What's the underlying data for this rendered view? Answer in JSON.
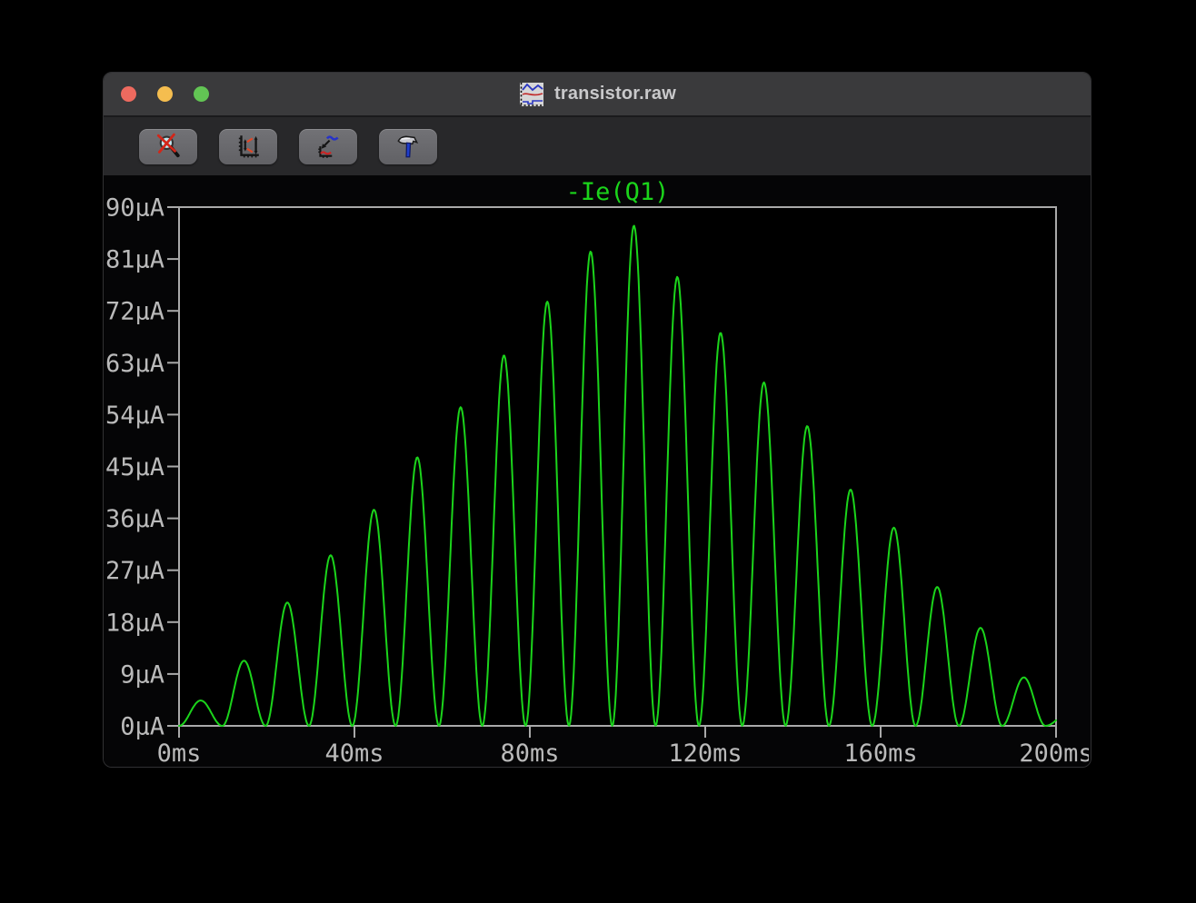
{
  "window": {
    "title": "transistor.raw",
    "traffic_lights": {
      "close": "#ee6a5f",
      "minimize": "#f5bd4f",
      "zoom": "#62c554"
    },
    "title_icon": "waveform-thumbnail-icon"
  },
  "toolbar": {
    "buttons": [
      {
        "icon": "zoom-cancel-icon"
      },
      {
        "icon": "autoscale-axes-icon"
      },
      {
        "icon": "add-plot-trace-icon"
      },
      {
        "icon": "hammer-tools-icon"
      }
    ]
  },
  "chart_data": {
    "type": "line",
    "title": "-Ie(Q1)",
    "x_unit": "ms",
    "y_unit": "µA",
    "xlim": [
      0,
      200
    ],
    "ylim": [
      0,
      90
    ],
    "x_tick_step": 40,
    "y_tick_step": 9,
    "x_tick_labels": [
      "0ms",
      "40ms",
      "80ms",
      "120ms",
      "160ms",
      "200ms"
    ],
    "y_tick_labels": [
      "0µA",
      "9µA",
      "18µA",
      "27µA",
      "36µA",
      "45µA",
      "54µA",
      "63µA",
      "72µA",
      "81µA",
      "90µA"
    ],
    "grid": false,
    "legend_position": "top-center",
    "colors": {
      "frame": "#a9a9a9",
      "tick_label": "#bababa",
      "plot_background": "#000000"
    },
    "series": [
      {
        "name": "-Ie(Q1)",
        "color": "#1bd41b",
        "model": "sin2_humps",
        "description": "AM-modulated rectified sine: y(t) = peak[k] * sin^2(pi*(t mod P)/P), k = floor(t/P); 20 humps rising to ~87uA near 104ms then falling",
        "hump_period_ms": 9.88,
        "hump_peak_values_uA": [
          4.4,
          11.3,
          21.4,
          29.6,
          37.5,
          46.6,
          55.3,
          64.3,
          73.6,
          82.3,
          86.8,
          77.9,
          68.2,
          59.6,
          52.0,
          41.0,
          34.4,
          24.1,
          17.0,
          8.4,
          2.0
        ]
      }
    ]
  }
}
